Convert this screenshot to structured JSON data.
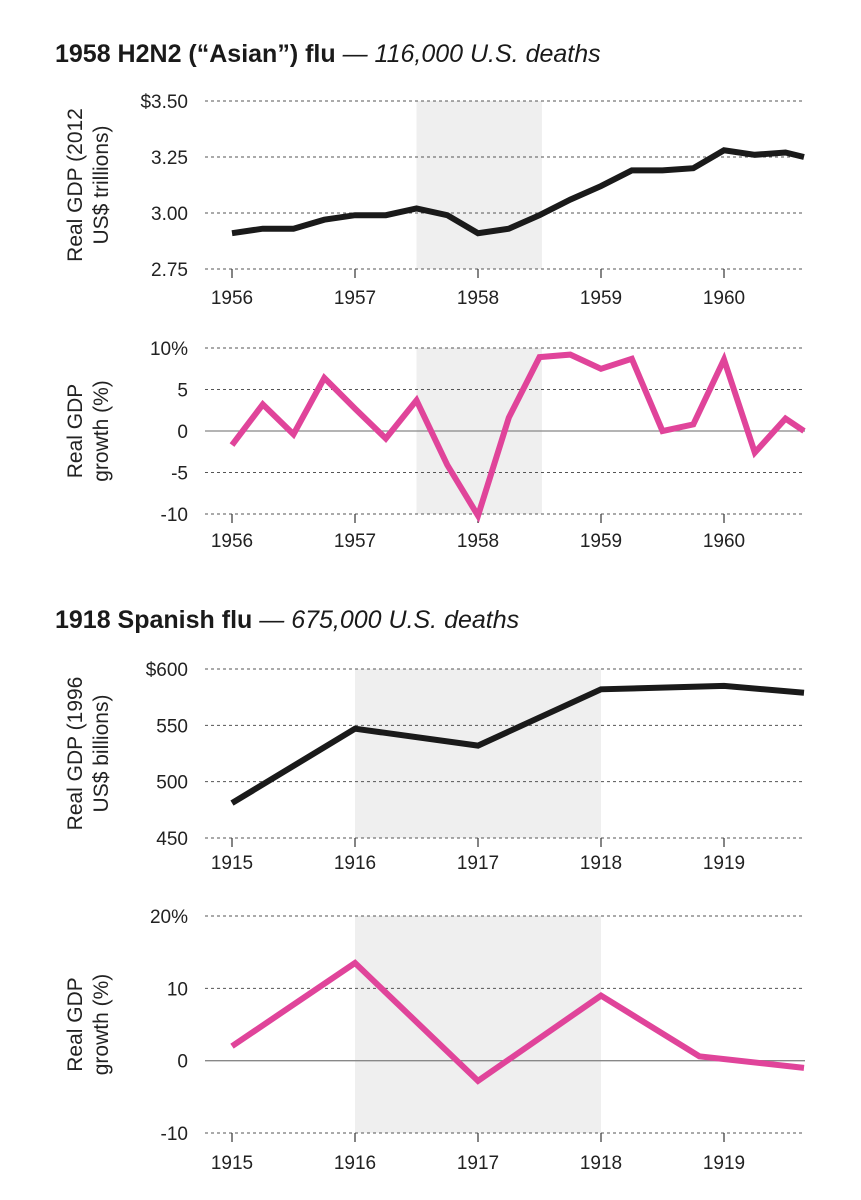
{
  "sections": [
    {
      "title": "1958 H2N2 (“Asian”) flu",
      "subtitle": "— 116,000 U.S. deaths"
    },
    {
      "title": "1918 Spanish flu",
      "subtitle": "— 675,000 U.S. deaths"
    }
  ],
  "colors": {
    "gdp": "#1a1a1a",
    "growth": "#e0449a",
    "shade": "#efefef",
    "grid": "#555555"
  },
  "chart_data": [
    {
      "type": "line",
      "ylabel": [
        "Real GDP (2012",
        "US$ trillions)"
      ],
      "ylim": [
        2.75,
        3.5
      ],
      "yticks": [
        2.75,
        3.0,
        3.25,
        3.5
      ],
      "ytick_labels": [
        "2.75",
        "3.00",
        "3.25",
        "$3.50"
      ],
      "xlim": [
        1955.98,
        1960.65
      ],
      "xticks": [
        1956,
        1957,
        1958,
        1959,
        1960
      ],
      "xtick_labels": [
        "1956",
        "1957",
        "1958",
        "1959",
        "1960"
      ],
      "shade": [
        1957.5,
        1958.52
      ],
      "series": [
        {
          "color": "gdp",
          "x": [
            1956.0,
            1956.25,
            1956.5,
            1956.75,
            1957.0,
            1957.25,
            1957.5,
            1957.75,
            1958.0,
            1958.25,
            1958.5,
            1958.75,
            1959.0,
            1959.25,
            1959.5,
            1959.75,
            1960.0,
            1960.25,
            1960.5,
            1960.65
          ],
          "y": [
            2.91,
            2.93,
            2.93,
            2.97,
            2.99,
            2.99,
            3.02,
            2.99,
            2.91,
            2.93,
            2.99,
            3.06,
            3.12,
            3.19,
            3.19,
            3.2,
            3.28,
            3.26,
            3.27,
            3.25
          ]
        }
      ]
    },
    {
      "type": "line",
      "ylabel": [
        "Real GDP",
        "growth (%)"
      ],
      "ylim": [
        -10,
        10
      ],
      "yticks": [
        -10,
        -5,
        0,
        5,
        10
      ],
      "ytick_labels": [
        "-10",
        "-5",
        "0",
        "5",
        "10%"
      ],
      "zero_line": true,
      "xlim": [
        1955.98,
        1960.65
      ],
      "xticks": [
        1956,
        1957,
        1958,
        1959,
        1960
      ],
      "xtick_labels": [
        "1956",
        "1957",
        "1958",
        "1959",
        "1960"
      ],
      "shade": [
        1957.5,
        1958.52
      ],
      "series": [
        {
          "color": "growth",
          "x": [
            1956.0,
            1956.25,
            1956.5,
            1956.75,
            1957.0,
            1957.25,
            1957.5,
            1957.75,
            1958.0,
            1958.25,
            1958.5,
            1958.75,
            1959.0,
            1959.25,
            1959.5,
            1959.75,
            1960.0,
            1960.25,
            1960.5,
            1960.65
          ],
          "y": [
            -1.7,
            3.2,
            -0.4,
            6.4,
            2.7,
            -0.9,
            3.7,
            -4.1,
            -10.2,
            1.6,
            8.9,
            9.2,
            7.5,
            8.7,
            0.0,
            0.8,
            8.6,
            -2.6,
            1.5,
            0.0
          ]
        }
      ]
    },
    {
      "type": "line",
      "ylabel": [
        "Real GDP (1996",
        "US$ billions)"
      ],
      "ylim": [
        450,
        600
      ],
      "yticks": [
        450,
        500,
        550,
        600
      ],
      "ytick_labels": [
        "450",
        "500",
        "550",
        "$600"
      ],
      "xlim": [
        1914.99,
        1919.65
      ],
      "xticks": [
        1915,
        1916,
        1917,
        1918,
        1919
      ],
      "xtick_labels": [
        "1915",
        "1916",
        "1917",
        "1918",
        "1919"
      ],
      "shade": [
        1916.0,
        1918.0
      ],
      "series": [
        {
          "color": "gdp",
          "x": [
            1915.0,
            1916.0,
            1917.0,
            1918.0,
            1919.0,
            1919.65
          ],
          "y": [
            481,
            547,
            532,
            582,
            585,
            579
          ]
        }
      ]
    },
    {
      "type": "line",
      "ylabel": [
        "Real GDP",
        "growth (%)"
      ],
      "ylim": [
        -10,
        20
      ],
      "yticks": [
        -10,
        0,
        10,
        20
      ],
      "ytick_labels": [
        "-10",
        "0",
        "10",
        "20%"
      ],
      "zero_line": true,
      "xlim": [
        1914.99,
        1919.65
      ],
      "xticks": [
        1915,
        1916,
        1917,
        1918,
        1919
      ],
      "xtick_labels": [
        "1915",
        "1916",
        "1917",
        "1918",
        "1919"
      ],
      "shade": [
        1916.0,
        1918.0
      ],
      "series": [
        {
          "color": "growth",
          "x": [
            1915.0,
            1916.0,
            1917.0,
            1918.0,
            1918.8,
            1919.65
          ],
          "y": [
            2.0,
            13.5,
            -2.8,
            9.0,
            0.6,
            -1.0
          ]
        }
      ]
    }
  ]
}
